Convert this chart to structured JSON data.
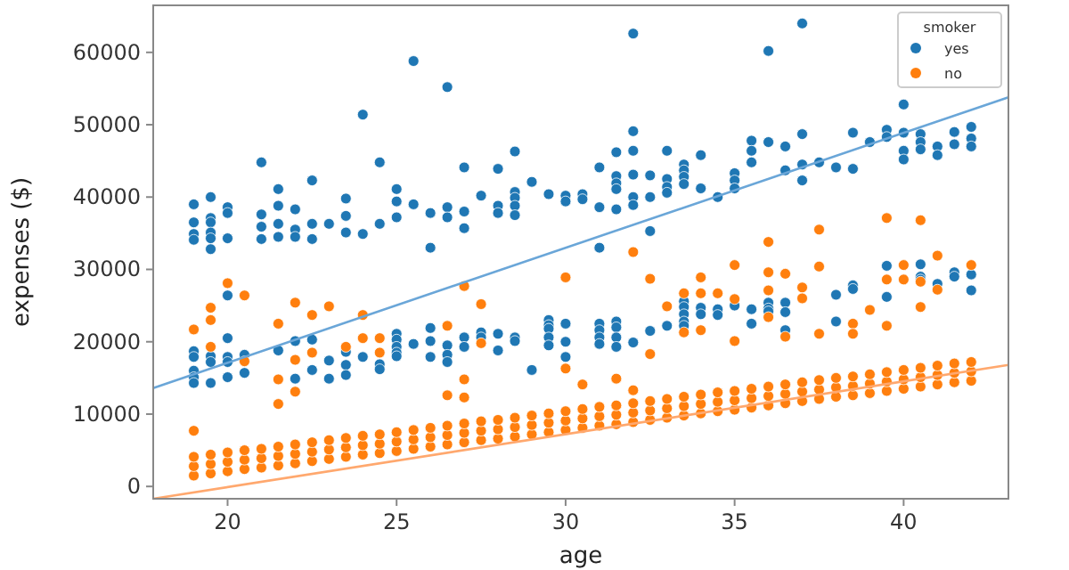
{
  "chart_data": {
    "type": "scatter",
    "xlabel": "age",
    "ylabel": "expenses ($)",
    "legend_title": "smoker",
    "legend": "top right",
    "grid": false,
    "marker": "circle",
    "xlim": [
      17.8,
      43.1
    ],
    "ylim": [
      -1700,
      66500
    ],
    "xticks": [
      20,
      25,
      30,
      35,
      40
    ],
    "yticks": [
      0,
      10000,
      20000,
      30000,
      40000,
      50000,
      60000
    ],
    "series": [
      {
        "name": "yes",
        "color": "#1f77b4",
        "x": [
          19,
          19,
          19,
          19,
          19.5,
          19.5,
          19.5,
          19.5,
          19.5,
          19.5,
          20,
          20,
          20,
          21,
          21,
          21,
          21,
          21.5,
          21.5,
          21.5,
          21.5,
          22,
          22,
          22,
          22.5,
          22.5,
          22.5,
          23,
          23.5,
          23.5,
          23.5,
          24,
          24,
          24.5,
          24.5,
          25,
          25,
          25,
          25.5,
          25.5,
          26,
          26,
          26.5,
          26.5,
          26.5,
          27,
          27,
          27,
          27.5,
          28,
          28,
          28,
          28.5,
          28.5,
          28.5,
          28.5,
          28.5,
          29,
          29.5,
          30,
          30,
          30.5,
          30.5,
          31,
          31,
          31,
          31.5,
          31.5,
          31.5,
          31.5,
          31.5,
          32,
          32,
          32,
          32,
          32,
          32,
          32.5,
          32.5,
          32.5,
          33,
          33,
          33,
          33,
          33.5,
          33.5,
          33.5,
          33.5,
          34,
          34,
          34.5,
          35,
          35,
          35,
          35.5,
          35.5,
          35.5,
          36,
          36,
          36.5,
          36.5,
          37,
          37,
          37,
          37,
          37.5,
          38,
          38.5,
          38.5,
          39,
          39.5,
          39.5,
          40,
          40,
          40,
          40,
          40.5,
          40.5,
          40.5,
          41,
          41,
          41.5,
          41.5,
          42,
          42,
          42,
          19,
          19,
          19,
          19,
          19,
          19.5,
          19.5,
          19.5,
          20,
          20,
          20,
          20,
          20,
          20.5,
          20.5,
          21.5,
          22,
          22,
          22.5,
          22.5,
          23,
          23,
          23.5,
          23.5,
          23.5,
          24,
          24.5,
          24.5,
          25,
          25,
          25,
          25,
          25,
          25.5,
          26,
          26,
          26,
          26.5,
          26.5,
          26.5,
          27,
          27,
          27.5,
          27.5,
          28,
          28,
          28.5,
          28.5,
          29,
          29.5,
          29.5,
          29.5,
          29.5,
          29.5,
          30,
          30,
          30,
          31,
          31,
          31,
          31,
          31.5,
          31.5,
          31.5,
          31.5,
          32,
          32.5,
          33,
          33.5,
          33.5,
          33.5,
          33.5,
          33.5,
          34,
          34,
          34.5,
          34.5,
          35,
          35.5,
          35.5,
          36,
          36,
          36,
          36.5,
          36.5,
          36.5,
          38,
          38,
          38.5,
          38.5,
          39.5,
          39.5,
          40.5,
          40.5,
          40.5,
          41,
          41.5,
          41.5,
          42,
          42
        ],
        "values": [
          39000,
          36500,
          34900,
          34100,
          40000,
          37100,
          36500,
          35100,
          34300,
          32800,
          38600,
          37800,
          34300,
          44800,
          37600,
          35900,
          34200,
          41100,
          38800,
          36300,
          34500,
          38300,
          35500,
          34500,
          42300,
          36300,
          34200,
          36300,
          39800,
          37400,
          35100,
          51400,
          34900,
          44800,
          36300,
          41100,
          39400,
          37200,
          58800,
          39000,
          37800,
          33000,
          55200,
          38600,
          37200,
          44100,
          38000,
          35700,
          40200,
          43900,
          38800,
          37800,
          46300,
          40700,
          39900,
          38800,
          37500,
          42100,
          40400,
          40200,
          39400,
          40400,
          39700,
          44100,
          38600,
          33000,
          46200,
          42900,
          41900,
          41100,
          38300,
          62600,
          49100,
          46400,
          43100,
          40000,
          38900,
          43000,
          40000,
          35300,
          46400,
          42500,
          41400,
          40600,
          44500,
          43700,
          42800,
          41800,
          45800,
          41200,
          40000,
          43300,
          42300,
          41200,
          47800,
          46400,
          44800,
          60200,
          47600,
          47000,
          43700,
          64000,
          48700,
          44500,
          42300,
          44800,
          44100,
          48900,
          43900,
          47600,
          49300,
          48300,
          52800,
          48900,
          46400,
          45200,
          48700,
          47600,
          46600,
          47000,
          45800,
          49000,
          47300,
          49700,
          48100,
          47000,
          18700,
          17900,
          16000,
          15100,
          14300,
          18000,
          17200,
          14300,
          26400,
          20500,
          17900,
          17200,
          15100,
          18200,
          15700,
          18800,
          20100,
          14900,
          20300,
          16100,
          17400,
          14900,
          18600,
          16800,
          15400,
          17900,
          16900,
          16200,
          21100,
          20300,
          19300,
          18500,
          18000,
          19700,
          21900,
          20100,
          17900,
          19500,
          18200,
          17200,
          20600,
          19300,
          21300,
          20600,
          21100,
          18800,
          20600,
          20100,
          16100,
          23000,
          22300,
          21800,
          20600,
          19500,
          22500,
          20000,
          17900,
          22500,
          21600,
          20600,
          19700,
          22800,
          22000,
          20600,
          19300,
          19900,
          21500,
          22200,
          25600,
          24800,
          23800,
          22800,
          22200,
          24700,
          23800,
          24500,
          23700,
          25000,
          24500,
          22500,
          25400,
          24600,
          24200,
          25400,
          24100,
          21600,
          26500,
          22800,
          27800,
          27300,
          30500,
          26200,
          30700,
          29000,
          28600,
          28000,
          29600,
          29000,
          29300,
          27100
        ]
      },
      {
        "name": "no",
        "color": "#ff7f0e",
        "x": [
          19,
          19.5,
          20,
          20.5,
          21,
          21.5,
          22,
          22.5,
          23,
          23.5,
          24,
          24.5,
          25,
          25.5,
          26,
          26.5,
          27,
          27.5,
          28,
          28.5,
          29,
          29.5,
          30,
          30.5,
          31,
          31.5,
          32,
          32.5,
          33,
          33.5,
          34,
          34.5,
          35,
          35.5,
          36,
          36.5,
          37,
          37.5,
          38,
          38.5,
          39,
          39.5,
          40,
          40.5,
          41,
          41.5,
          42,
          19,
          19.5,
          20,
          20.5,
          21,
          21.5,
          22,
          22.5,
          23,
          23.5,
          24,
          24.5,
          25,
          25.5,
          26,
          26.5,
          27,
          27.5,
          28,
          28.5,
          29,
          29.5,
          30,
          30.5,
          31,
          31.5,
          32,
          32.5,
          33,
          33.5,
          34,
          34.5,
          35,
          35.5,
          36,
          36.5,
          37,
          37.5,
          38,
          38.5,
          39,
          39.5,
          40,
          40.5,
          41,
          41.5,
          42,
          19,
          19.5,
          20,
          20.5,
          21,
          21.5,
          22,
          22.5,
          23,
          23.5,
          24,
          24.5,
          25,
          25.5,
          26,
          26.5,
          27,
          27.5,
          28,
          28.5,
          29,
          29.5,
          30,
          30.5,
          31,
          31.5,
          32,
          32.5,
          33,
          33.5,
          34,
          34.5,
          35,
          35.5,
          36,
          36.5,
          37,
          37.5,
          38,
          38.5,
          39,
          39.5,
          40,
          40.5,
          41,
          41.5,
          42,
          19,
          19,
          19.5,
          19.5,
          19.5,
          20,
          20.5,
          20.5,
          21.5,
          21.5,
          21.5,
          22,
          22,
          22,
          22.5,
          22.5,
          23,
          23.5,
          24,
          24,
          24.5,
          24.5,
          26.5,
          26.5,
          27,
          27,
          27,
          27.5,
          27.5,
          30,
          30,
          30.5,
          31.5,
          32,
          32,
          32.5,
          32.5,
          33,
          33.5,
          33.5,
          34,
          34,
          34,
          34.5,
          35,
          35,
          35,
          36,
          36,
          36,
          36,
          36.5,
          36.5,
          37,
          37,
          37.5,
          37.5,
          37.5,
          38.5,
          38.5,
          39,
          39.5,
          39.5,
          39.5,
          40,
          40,
          40.5,
          40.5,
          40.5,
          41,
          41,
          42
        ],
        "values": [
          1500,
          1800,
          2100,
          2400,
          2600,
          2900,
          3200,
          3500,
          3800,
          4100,
          4400,
          4600,
          4900,
          5200,
          5500,
          5800,
          6100,
          6400,
          6600,
          6900,
          7200,
          7500,
          7800,
          8100,
          8400,
          8600,
          8900,
          9200,
          9500,
          9800,
          10100,
          10400,
          10600,
          10900,
          11200,
          11500,
          11800,
          12100,
          12400,
          12600,
          12900,
          13200,
          13500,
          13800,
          14100,
          14400,
          14600,
          2800,
          3100,
          3400,
          3700,
          3900,
          4200,
          4500,
          4800,
          5100,
          5400,
          5700,
          5900,
          6200,
          6500,
          6800,
          7100,
          7400,
          7700,
          7900,
          8200,
          8500,
          8800,
          9100,
          9400,
          9700,
          9900,
          10200,
          10500,
          10800,
          11100,
          11400,
          11700,
          11900,
          12200,
          12500,
          12800,
          13100,
          13400,
          13700,
          13900,
          14200,
          14500,
          14800,
          15100,
          15400,
          15700,
          15900,
          4100,
          4400,
          4700,
          5000,
          5200,
          5500,
          5800,
          6100,
          6400,
          6700,
          7000,
          7200,
          7500,
          7800,
          8100,
          8400,
          8700,
          9000,
          9200,
          9500,
          9800,
          10100,
          10400,
          10700,
          11000,
          11200,
          11500,
          11800,
          12100,
          12400,
          12700,
          13000,
          13200,
          13500,
          13800,
          14100,
          14400,
          14700,
          15000,
          15200,
          15500,
          15800,
          16100,
          16400,
          16700,
          17000,
          17200,
          21700,
          7700,
          24700,
          23000,
          19300,
          28100,
          26400,
          17300,
          22500,
          14800,
          11400,
          25400,
          17500,
          13100,
          23700,
          18500,
          24900,
          19300,
          23700,
          20500,
          20500,
          18500,
          22200,
          12600,
          27700,
          14800,
          12300,
          25200,
          19800,
          28900,
          16300,
          14100,
          14900,
          32400,
          13300,
          28700,
          18300,
          24900,
          26700,
          21300,
          28900,
          26700,
          21600,
          26700,
          30600,
          25900,
          20100,
          33800,
          29600,
          27100,
          23400,
          29400,
          20700,
          27500,
          26000,
          35500,
          30400,
          21100,
          22500,
          21100,
          24400,
          37100,
          28600,
          22200,
          30600,
          28600,
          36800,
          28300,
          24800,
          31900,
          27200,
          30600
        ]
      },
      {
        "type": "line",
        "marker": "none",
        "color": "#6aa6d8",
        "x": [
          17.8,
          43.1
        ],
        "values": [
          13600,
          53800
        ]
      },
      {
        "type": "line",
        "marker": "none",
        "color": "#ffa86e",
        "x": [
          17.8,
          43.1
        ],
        "values": [
          -1700,
          16800
        ]
      }
    ]
  }
}
